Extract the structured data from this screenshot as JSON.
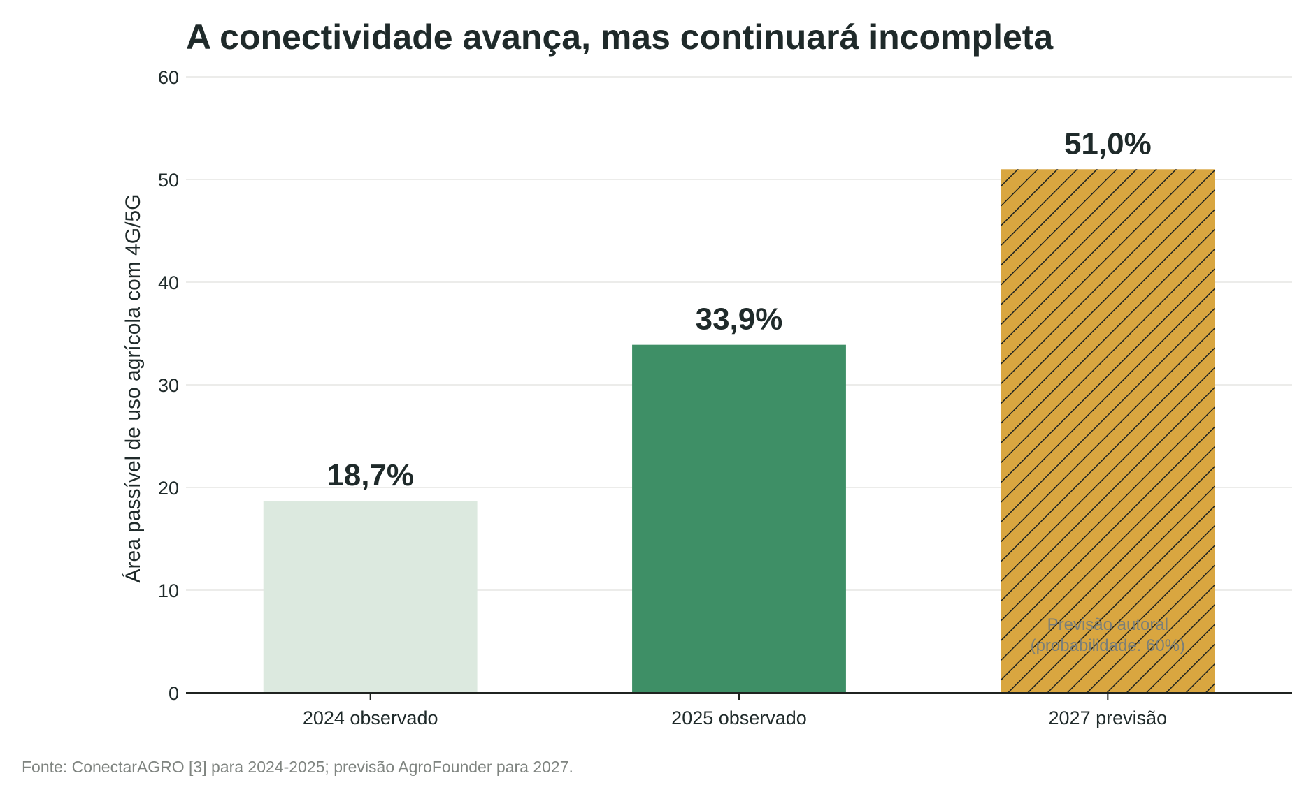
{
  "chart_data": {
    "type": "bar",
    "title": "A conectividade avança, mas continuará incompleta",
    "xlabel": "",
    "ylabel": "Área passível de uso agrícola com 4G/5G",
    "ylim": [
      0,
      60
    ],
    "yticks": [
      "0",
      "10",
      "20",
      "30",
      "40",
      "50",
      "60"
    ],
    "grid": true,
    "categories": [
      "2024 observado",
      "2025 observado",
      "2027 previsão"
    ],
    "values": [
      18.7,
      33.9,
      51.0
    ],
    "value_labels": [
      "18,7%",
      "33,9%",
      "51,0%"
    ],
    "colors": [
      "#dce9df",
      "#3e8f66",
      "#d9a640"
    ],
    "hatched": [
      false,
      false,
      true
    ],
    "annotation": {
      "category_index": 2,
      "lines": [
        "Previsão autoral",
        "(probabilidade: 60%)"
      ]
    },
    "source": "Fonte: ConectarAGRO [3] para 2024-2025; previsão AgroFounder para 2027."
  }
}
